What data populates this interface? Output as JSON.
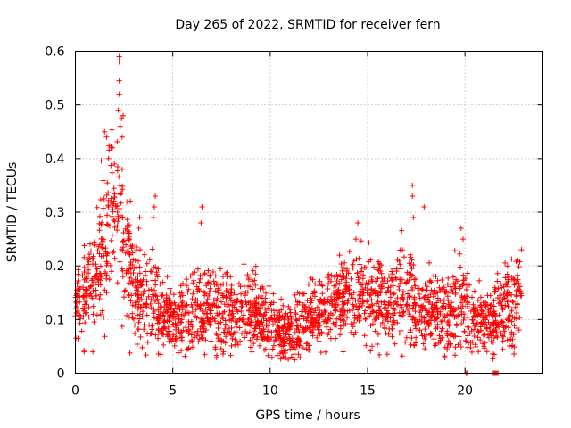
{
  "chart_data": {
    "type": "scatter",
    "title": "Day 265 of 2022, SRMTID for receiver fern",
    "xlabel": "GPS time / hours",
    "ylabel": "SRMTID / TECUs",
    "xlim": [
      0,
      24
    ],
    "ylim": [
      0,
      0.6
    ],
    "x_ticks": [
      0,
      5,
      10,
      15,
      20
    ],
    "x_tick_labels": [
      "0",
      "5",
      "10",
      "15",
      "20"
    ],
    "y_ticks": [
      0,
      0.1,
      0.2,
      0.3,
      0.4,
      0.5,
      0.6
    ],
    "y_tick_labels": [
      "0",
      "0.1",
      "0.2",
      "0.3",
      "0.4",
      "0.5",
      "0.6"
    ],
    "grid": true,
    "marker": "plus",
    "color": "#ff0000",
    "data_end_hour": 22.9,
    "profile": [
      {
        "t": 0.0,
        "mean": 0.13,
        "spread": 0.05
      },
      {
        "t": 0.5,
        "mean": 0.15,
        "spread": 0.06
      },
      {
        "t": 1.0,
        "mean": 0.18,
        "spread": 0.08
      },
      {
        "t": 1.5,
        "mean": 0.24,
        "spread": 0.1
      },
      {
        "t": 2.0,
        "mean": 0.3,
        "spread": 0.12
      },
      {
        "t": 2.4,
        "mean": 0.28,
        "spread": 0.14
      },
      {
        "t": 3.0,
        "mean": 0.15,
        "spread": 0.07
      },
      {
        "t": 4.0,
        "mean": 0.13,
        "spread": 0.06
      },
      {
        "t": 5.0,
        "mean": 0.1,
        "spread": 0.04
      },
      {
        "t": 6.5,
        "mean": 0.12,
        "spread": 0.06
      },
      {
        "t": 8.0,
        "mean": 0.11,
        "spread": 0.05
      },
      {
        "t": 9.0,
        "mean": 0.12,
        "spread": 0.05
      },
      {
        "t": 10.0,
        "mean": 0.09,
        "spread": 0.04
      },
      {
        "t": 11.0,
        "mean": 0.07,
        "spread": 0.035
      },
      {
        "t": 12.0,
        "mean": 0.1,
        "spread": 0.045
      },
      {
        "t": 13.0,
        "mean": 0.12,
        "spread": 0.05
      },
      {
        "t": 14.0,
        "mean": 0.15,
        "spread": 0.06
      },
      {
        "t": 15.0,
        "mean": 0.15,
        "spread": 0.06
      },
      {
        "t": 16.0,
        "mean": 0.13,
        "spread": 0.05
      },
      {
        "t": 17.0,
        "mean": 0.15,
        "spread": 0.07
      },
      {
        "t": 18.0,
        "mean": 0.12,
        "spread": 0.05
      },
      {
        "t": 19.0,
        "mean": 0.11,
        "spread": 0.05
      },
      {
        "t": 20.0,
        "mean": 0.13,
        "spread": 0.06
      },
      {
        "t": 21.0,
        "mean": 0.09,
        "spread": 0.04
      },
      {
        "t": 22.0,
        "mean": 0.12,
        "spread": 0.05
      },
      {
        "t": 22.9,
        "mean": 0.15,
        "spread": 0.06
      }
    ],
    "notable_points": [
      {
        "x": 2.25,
        "y": 0.59
      },
      {
        "x": 2.25,
        "y": 0.58
      },
      {
        "x": 2.25,
        "y": 0.545
      },
      {
        "x": 2.25,
        "y": 0.52
      },
      {
        "x": 2.45,
        "y": 0.48
      },
      {
        "x": 2.3,
        "y": 0.46
      },
      {
        "x": 2.4,
        "y": 0.44
      },
      {
        "x": 1.5,
        "y": 0.45
      },
      {
        "x": 1.6,
        "y": 0.44
      },
      {
        "x": 1.9,
        "y": 0.42
      },
      {
        "x": 1.7,
        "y": 0.4
      },
      {
        "x": 2.0,
        "y": 0.39
      },
      {
        "x": 2.4,
        "y": 0.38
      },
      {
        "x": 4.1,
        "y": 0.33
      },
      {
        "x": 4.05,
        "y": 0.31
      },
      {
        "x": 4.0,
        "y": 0.29
      },
      {
        "x": 6.5,
        "y": 0.31
      },
      {
        "x": 6.45,
        "y": 0.28
      },
      {
        "x": 3.3,
        "y": 0.29
      },
      {
        "x": 3.25,
        "y": 0.27
      },
      {
        "x": 17.3,
        "y": 0.35
      },
      {
        "x": 17.3,
        "y": 0.33
      },
      {
        "x": 17.35,
        "y": 0.29
      },
      {
        "x": 17.9,
        "y": 0.31
      },
      {
        "x": 14.5,
        "y": 0.28
      },
      {
        "x": 14.4,
        "y": 0.25
      },
      {
        "x": 19.8,
        "y": 0.27
      },
      {
        "x": 19.9,
        "y": 0.25
      },
      {
        "x": 22.9,
        "y": 0.23
      },
      {
        "x": 0.45,
        "y": 0.04
      },
      {
        "x": 0.9,
        "y": 0.04
      },
      {
        "x": 11.1,
        "y": 0.03
      },
      {
        "x": 21.5,
        "y": 0.035
      }
    ],
    "zero_points": [
      {
        "x": 12.5,
        "y": 0
      },
      {
        "x": 20.05,
        "y": 0
      },
      {
        "x": 20.1,
        "y": 0
      },
      {
        "x": 21.45,
        "y": 0
      },
      {
        "x": 21.5,
        "y": 0
      },
      {
        "x": 21.55,
        "y": 0
      },
      {
        "x": 21.6,
        "y": 0
      },
      {
        "x": 21.65,
        "y": 0
      },
      {
        "x": 21.7,
        "y": 0
      }
    ]
  }
}
